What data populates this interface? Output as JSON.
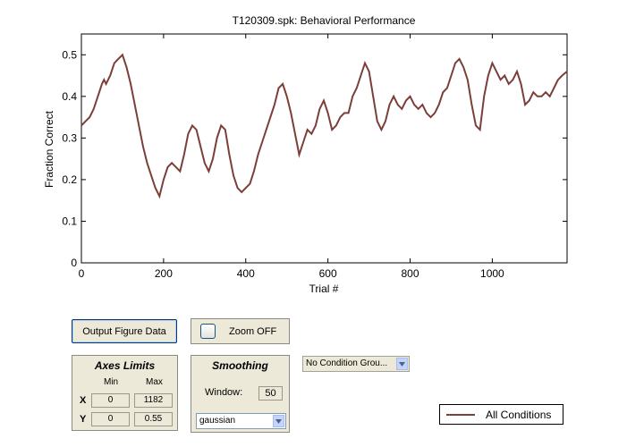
{
  "window": {
    "title": "T120309.spk: Behavioral Performance"
  },
  "chart_data": {
    "type": "line",
    "title": "T120309.spk: Behavioral Performance",
    "xlabel": "Trial #",
    "ylabel": "Fraction Correct",
    "xlim": [
      0,
      1182
    ],
    "ylim": [
      0,
      0.55
    ],
    "xticks": [
      0,
      200,
      400,
      600,
      800,
      1000
    ],
    "yticks": [
      0,
      0.1,
      0.2,
      0.3,
      0.4,
      0.5
    ],
    "xtick_labels": [
      "0",
      "200",
      "400",
      "600",
      "800",
      "1000"
    ],
    "ytick_labels": [
      "0",
      "0.1",
      "0.2",
      "0.3",
      "0.4",
      "0.5"
    ],
    "grid": false,
    "legend_position": "bottom-right",
    "series": [
      {
        "name": "All Conditions",
        "color": "#7b3f3a",
        "x": [
          0,
          10,
          20,
          30,
          40,
          50,
          55,
          60,
          70,
          80,
          90,
          100,
          110,
          120,
          130,
          140,
          150,
          160,
          170,
          180,
          190,
          200,
          210,
          220,
          230,
          240,
          250,
          260,
          270,
          280,
          290,
          300,
          310,
          320,
          330,
          340,
          350,
          360,
          370,
          380,
          390,
          400,
          410,
          420,
          430,
          440,
          450,
          460,
          470,
          480,
          490,
          500,
          510,
          520,
          530,
          540,
          550,
          560,
          570,
          580,
          590,
          600,
          610,
          620,
          630,
          640,
          650,
          660,
          670,
          680,
          690,
          700,
          710,
          720,
          730,
          740,
          750,
          760,
          770,
          780,
          790,
          800,
          810,
          820,
          830,
          840,
          850,
          860,
          870,
          880,
          890,
          900,
          910,
          920,
          930,
          940,
          950,
          960,
          970,
          980,
          990,
          1000,
          1010,
          1020,
          1030,
          1040,
          1050,
          1060,
          1070,
          1080,
          1090,
          1100,
          1110,
          1120,
          1130,
          1140,
          1150,
          1160,
          1170,
          1182
        ],
        "y": [
          0.33,
          0.34,
          0.35,
          0.37,
          0.4,
          0.43,
          0.44,
          0.43,
          0.45,
          0.48,
          0.49,
          0.5,
          0.47,
          0.43,
          0.38,
          0.33,
          0.28,
          0.24,
          0.21,
          0.18,
          0.16,
          0.2,
          0.23,
          0.24,
          0.23,
          0.22,
          0.26,
          0.31,
          0.33,
          0.32,
          0.28,
          0.24,
          0.22,
          0.25,
          0.3,
          0.33,
          0.32,
          0.26,
          0.21,
          0.18,
          0.17,
          0.18,
          0.19,
          0.22,
          0.26,
          0.29,
          0.32,
          0.35,
          0.38,
          0.42,
          0.43,
          0.4,
          0.36,
          0.31,
          0.26,
          0.29,
          0.32,
          0.31,
          0.33,
          0.37,
          0.39,
          0.36,
          0.32,
          0.33,
          0.35,
          0.36,
          0.36,
          0.4,
          0.42,
          0.45,
          0.48,
          0.46,
          0.4,
          0.34,
          0.32,
          0.34,
          0.38,
          0.4,
          0.38,
          0.37,
          0.39,
          0.4,
          0.38,
          0.37,
          0.38,
          0.36,
          0.35,
          0.36,
          0.38,
          0.41,
          0.42,
          0.45,
          0.48,
          0.49,
          0.47,
          0.44,
          0.38,
          0.33,
          0.32,
          0.4,
          0.45,
          0.48,
          0.46,
          0.44,
          0.45,
          0.43,
          0.44,
          0.46,
          0.43,
          0.38,
          0.39,
          0.41,
          0.4,
          0.4,
          0.41,
          0.4,
          0.42,
          0.44,
          0.45,
          0.46
        ]
      }
    ]
  },
  "controls": {
    "output_button_label": "Output Figure Data",
    "zoom_label": "Zoom OFF",
    "axes_limits": {
      "title": "Axes Limits",
      "min_header": "Min",
      "max_header": "Max",
      "x_label": "X",
      "y_label": "Y",
      "x_min": "0",
      "x_max": "1182",
      "y_min": "0",
      "y_max": "0.55"
    },
    "smoothing": {
      "title": "Smoothing",
      "window_label": "Window:",
      "window_value": "50",
      "method_value": "gaussian"
    },
    "condition_group_value": "No Condition Grou...",
    "legend_label": "All Conditions"
  }
}
